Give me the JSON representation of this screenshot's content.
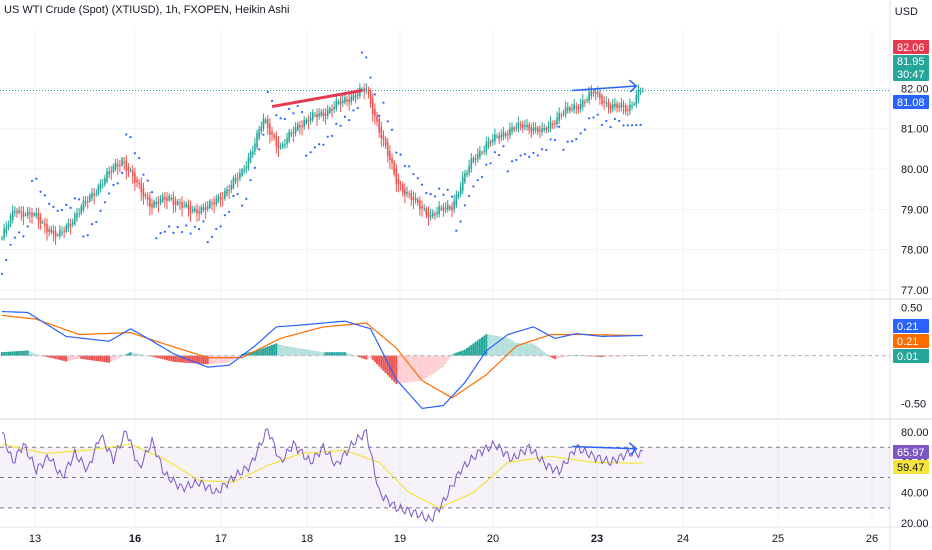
{
  "header": {
    "title": "US WTI Crude (Spot) (XTIUSD), 1h, FXOPEN, Heikin Ashi",
    "currency": "USD"
  },
  "colors": {
    "bull": "#26a69a",
    "bear": "#ef5350",
    "macd_line": "#2962ff",
    "signal_line": "#ff6d00",
    "rsi_line": "#7e57c2",
    "rsi_ma": "#f5e43a",
    "annotation_red": "#e53950",
    "annotation_blue": "#2962ff",
    "dotted_price": "#26a69a",
    "grid": "#f0f3fa"
  },
  "x_axis": {
    "labels": [
      {
        "text": "13",
        "bold": false
      },
      {
        "text": "16",
        "bold": true
      },
      {
        "text": "17",
        "bold": false
      },
      {
        "text": "18",
        "bold": false
      },
      {
        "text": "19",
        "bold": false
      },
      {
        "text": "20",
        "bold": false
      },
      {
        "text": "23",
        "bold": true
      },
      {
        "text": "24",
        "bold": false
      },
      {
        "text": "25",
        "bold": false
      },
      {
        "text": "26",
        "bold": false
      }
    ]
  },
  "price_tags": {
    "high": "82.06",
    "last": "81.95",
    "countdown": "30:47",
    "sar": "81.08"
  },
  "macd_tags": {
    "macd": "0.21",
    "signal": "0.21",
    "hist": "0.01"
  },
  "rsi_tags": {
    "rsi": "65.97",
    "ma": "59.47"
  },
  "chart_data": [
    {
      "type": "candlestick",
      "style": "Heikin Ashi",
      "symbol": "XTIUSD",
      "timeframe": "1h",
      "ylim": [
        76.8,
        83.5
      ],
      "yticks": [
        "82.00",
        "81.00",
        "80.00",
        "79.00",
        "78.00",
        "77.00"
      ],
      "last_price": 81.95,
      "anchors": [
        [
          0,
          78.3
        ],
        [
          6,
          79.0
        ],
        [
          16,
          78.8
        ],
        [
          26,
          78.3
        ],
        [
          38,
          79.1
        ],
        [
          50,
          79.9
        ],
        [
          56,
          80.25
        ],
        [
          63,
          79.6
        ],
        [
          70,
          79.1
        ],
        [
          78,
          79.3
        ],
        [
          88,
          78.95
        ],
        [
          98,
          79.1
        ],
        [
          112,
          79.9
        ],
        [
          122,
          81.2
        ],
        [
          130,
          80.5
        ],
        [
          138,
          81.1
        ],
        [
          150,
          81.4
        ],
        [
          160,
          81.7
        ],
        [
          166,
          81.9
        ],
        [
          170,
          81.95
        ],
        [
          176,
          81.0
        ],
        [
          184,
          79.7
        ],
        [
          192,
          79.2
        ],
        [
          200,
          78.85
        ],
        [
          210,
          79.1
        ],
        [
          220,
          80.3
        ],
        [
          232,
          80.85
        ],
        [
          244,
          81.1
        ],
        [
          252,
          80.9
        ],
        [
          260,
          81.35
        ],
        [
          268,
          81.55
        ],
        [
          276,
          81.9
        ],
        [
          284,
          81.55
        ],
        [
          292,
          81.5
        ],
        [
          298,
          81.95
        ]
      ],
      "sar_last": 81.08,
      "annotations": [
        {
          "type": "trendline",
          "color": "red",
          "from": [
            126,
            81.55
          ],
          "to": [
            168,
            81.95
          ]
        },
        {
          "type": "arrow",
          "color": "blue",
          "from": [
            266,
            81.95
          ],
          "to": [
            296,
            82.06
          ]
        }
      ]
    },
    {
      "type": "macd",
      "ylim": [
        -0.65,
        0.58
      ],
      "yticks": [
        "0.50",
        "-0.50"
      ],
      "macd_last": 0.21,
      "signal_last": 0.21,
      "hist_last": 0.01
    },
    {
      "type": "rsi",
      "ylim": [
        18,
        88
      ],
      "yticks": [
        "80.00",
        "60.00",
        "40.00",
        "20.00"
      ],
      "bands": [
        70,
        50,
        30
      ],
      "rsi_last": 65.97,
      "ma_last": 59.47,
      "rsi_anchors": [
        [
          0,
          80
        ],
        [
          5,
          60
        ],
        [
          10,
          72
        ],
        [
          16,
          55
        ],
        [
          22,
          64
        ],
        [
          28,
          50
        ],
        [
          34,
          66
        ],
        [
          40,
          55
        ],
        [
          46,
          78
        ],
        [
          52,
          62
        ],
        [
          58,
          81
        ],
        [
          64,
          56
        ],
        [
          70,
          74
        ],
        [
          76,
          52
        ],
        [
          84,
          43
        ],
        [
          92,
          47
        ],
        [
          100,
          40
        ],
        [
          108,
          50
        ],
        [
          116,
          58
        ],
        [
          124,
          82
        ],
        [
          130,
          60
        ],
        [
          136,
          72
        ],
        [
          144,
          60
        ],
        [
          150,
          70
        ],
        [
          156,
          58
        ],
        [
          164,
          73
        ],
        [
          170,
          80
        ],
        [
          176,
          40
        ],
        [
          184,
          30
        ],
        [
          194,
          26
        ],
        [
          200,
          22
        ],
        [
          206,
          34
        ],
        [
          214,
          55
        ],
        [
          222,
          66
        ],
        [
          230,
          72
        ],
        [
          238,
          62
        ],
        [
          246,
          70
        ],
        [
          254,
          58
        ],
        [
          260,
          54
        ],
        [
          268,
          70
        ],
        [
          276,
          64
        ],
        [
          284,
          60
        ],
        [
          292,
          66
        ],
        [
          298,
          66
        ]
      ],
      "annotations": [
        {
          "type": "arrow",
          "color": "blue",
          "from": [
            266,
            70.5
          ],
          "to": [
            296,
            69.0
          ]
        }
      ]
    }
  ]
}
